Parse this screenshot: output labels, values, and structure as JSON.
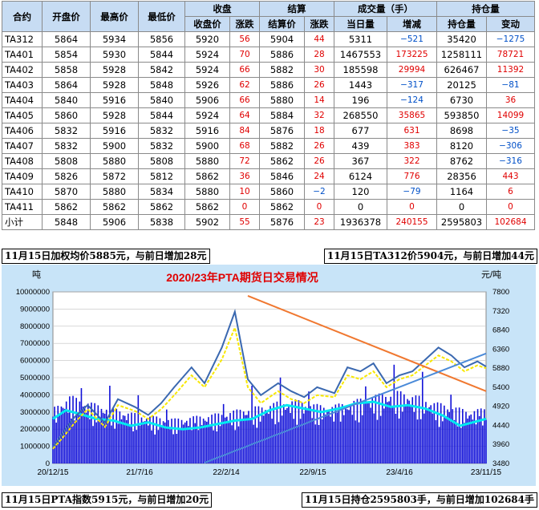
{
  "table": {
    "headers_top": [
      "合约",
      "开盘价",
      "最高价",
      "最低价",
      "收盘",
      "结算",
      "成交量（手）",
      "持仓量"
    ],
    "headers_sub": [
      "收盘价",
      "涨跌",
      "结算价",
      "涨跌",
      "当日量",
      "增减",
      "持仓量",
      "变动"
    ],
    "rows": [
      [
        "TA312",
        "5864",
        "5934",
        "5856",
        "5920",
        "56",
        "5904",
        "44",
        "5311",
        "−521",
        "35420",
        "−1275"
      ],
      [
        "TA401",
        "5854",
        "5930",
        "5844",
        "5924",
        "70",
        "5886",
        "28",
        "1467553",
        "173225",
        "1258111",
        "78721"
      ],
      [
        "TA402",
        "5858",
        "5928",
        "5842",
        "5924",
        "66",
        "5882",
        "30",
        "185598",
        "29994",
        "626467",
        "11392"
      ],
      [
        "TA403",
        "5864",
        "5928",
        "5848",
        "5926",
        "62",
        "5886",
        "26",
        "1443",
        "−317",
        "20125",
        "−81"
      ],
      [
        "TA404",
        "5840",
        "5916",
        "5840",
        "5906",
        "66",
        "5880",
        "14",
        "196",
        "−124",
        "6730",
        "36"
      ],
      [
        "TA405",
        "5860",
        "5928",
        "5844",
        "5924",
        "64",
        "5884",
        "32",
        "268550",
        "35865",
        "593850",
        "14099"
      ],
      [
        "TA406",
        "5832",
        "5916",
        "5832",
        "5916",
        "84",
        "5876",
        "18",
        "677",
        "631",
        "8698",
        "−35"
      ],
      [
        "TA407",
        "5832",
        "5900",
        "5832",
        "5900",
        "68",
        "5882",
        "26",
        "439",
        "383",
        "8120",
        "−306"
      ],
      [
        "TA408",
        "5808",
        "5880",
        "5808",
        "5880",
        "72",
        "5862",
        "26",
        "367",
        "322",
        "8762",
        "−316"
      ],
      [
        "TA409",
        "5826",
        "5872",
        "5812",
        "5862",
        "36",
        "5846",
        "24",
        "6124",
        "776",
        "28356",
        "443"
      ],
      [
        "TA410",
        "5870",
        "5880",
        "5834",
        "5880",
        "10",
        "5860",
        "−2",
        "120",
        "−79",
        "1164",
        "6"
      ],
      [
        "TA411",
        "5862",
        "5862",
        "5862",
        "5862",
        "0",
        "5862",
        "0",
        "0",
        "0",
        "0",
        "0"
      ],
      [
        "小计",
        "5848",
        "5906",
        "5838",
        "5902",
        "55",
        "5876",
        "23",
        "1936378",
        "240155",
        "2595803",
        "102684"
      ]
    ]
  },
  "notes": {
    "weighted_avg": "11月15日加权均价5885元，与前日增加28元",
    "ta312_price": "11月15日TA312价5904元，与前日增加44元",
    "pta_index": "11月15日PTA指数5915元，与前日增加20元",
    "open_interest": "11月15日持仓2595803手，与前日增加102684手"
  },
  "colors": {
    "red": "#e00000",
    "blue": "#0050c8",
    "header_bg": "#c7dcf3",
    "plot_bg": "#ffffff",
    "chart_bg": "#c8e4f8",
    "bars": "#1010d8",
    "oi_line": "#00e8f0",
    "price_line": "#3a68b0",
    "settle_line": "#f8e800",
    "trend_orange": "#f07830",
    "trend_blue": "#4a8ad8"
  },
  "chart_data": {
    "type": "bar",
    "title": "2020/23年PTA期货日交易情况",
    "ylabel_left": "吨",
    "ylabel_right": "元/吨",
    "left_ticks": [
      "10000000",
      "9000000",
      "8000000",
      "7000000",
      "6000000",
      "5000000",
      "4000000",
      "3000000",
      "2000000",
      "1000000",
      "0"
    ],
    "right_ticks": [
      "7800",
      "7320",
      "6840",
      "6360",
      "5880",
      "5400",
      "4920",
      "4440",
      "3960",
      "3480"
    ],
    "x_ticks": [
      "20/12/15",
      "21/7/16",
      "22/2/14",
      "22/9/15",
      "23/4/16",
      "23/11/15"
    ],
    "ylim_left": [
      0,
      10000000
    ],
    "ylim_right": [
      3480,
      7800
    ],
    "x_range": [
      0,
      1
    ],
    "series": [
      {
        "kind": "bars",
        "x": [
          0,
          0.04,
          0.08,
          0.12,
          0.16,
          0.2,
          0.24,
          0.28,
          0.32,
          0.36,
          0.4,
          0.44,
          0.48,
          0.52,
          0.56,
          0.6,
          0.64,
          0.68,
          0.72,
          0.76,
          0.8,
          0.84,
          0.88,
          0.92,
          0.96,
          1.0
        ],
        "values": [
          2600000,
          3200000,
          2900000,
          2700000,
          2500000,
          2300000,
          2200000,
          2100000,
          2200000,
          2300000,
          2400000,
          2600000,
          2700000,
          2900000,
          3000000,
          2800000,
          2700000,
          2900000,
          3100000,
          3300000,
          3400000,
          3200000,
          2900000,
          2700000,
          2500000,
          2600000
        ]
      },
      {
        "kind": "line",
        "x": [
          0,
          0.03,
          0.06,
          0.1,
          0.14,
          0.18,
          0.22,
          0.26,
          0.3,
          0.34,
          0.38,
          0.42,
          0.46,
          0.5,
          0.54,
          0.58,
          0.62,
          0.66,
          0.7,
          0.74,
          0.78,
          0.82,
          0.86,
          0.9,
          0.94,
          0.97,
          1.0
        ],
        "values": [
          2600000,
          3100000,
          2900000,
          2600000,
          2500000,
          2200000,
          2400000,
          2100000,
          2000000,
          2100000,
          2300000,
          2500000,
          2600000,
          3100000,
          3400000,
          3200000,
          3000000,
          3200000,
          3500000,
          3600000,
          3300000,
          3400000,
          3200000,
          2800000,
          2200000,
          2400000,
          2600000
        ]
      }
    ],
    "price": {
      "x": [
        0,
        0.02,
        0.05,
        0.08,
        0.12,
        0.15,
        0.19,
        0.22,
        0.25,
        0.28,
        0.32,
        0.35,
        0.39,
        0.42,
        0.45,
        0.48,
        0.52,
        0.55,
        0.58,
        0.61,
        0.65,
        0.68,
        0.71,
        0.74,
        0.77,
        0.8,
        0.83,
        0.86,
        0.89,
        0.92,
        0.95,
        0.98,
        1.0
      ],
      "values": [
        3900,
        4200,
        4650,
        4950,
        4500,
        5100,
        4900,
        4700,
        5000,
        5400,
        5900,
        5500,
        6400,
        7300,
        5600,
        5200,
        5500,
        5300,
        5150,
        5400,
        5250,
        5900,
        5800,
        6000,
        5500,
        5700,
        5800,
        6100,
        6400,
        6200,
        5900,
        6050,
        5920
      ]
    },
    "settle": {
      "x": [
        0,
        0.02,
        0.05,
        0.08,
        0.12,
        0.15,
        0.19,
        0.22,
        0.25,
        0.28,
        0.32,
        0.35,
        0.39,
        0.42,
        0.45,
        0.48,
        0.52,
        0.55,
        0.58,
        0.61,
        0.65,
        0.68,
        0.71,
        0.74,
        0.77,
        0.8,
        0.83,
        0.86,
        0.89,
        0.92,
        0.95,
        0.98,
        1.0
      ],
      "values": [
        3850,
        4100,
        4500,
        4850,
        4400,
        4950,
        4800,
        4600,
        4850,
        5200,
        5700,
        5400,
        6100,
        6900,
        5400,
        5000,
        5300,
        5100,
        5000,
        5200,
        5150,
        5700,
        5600,
        5800,
        5400,
        5600,
        5700,
        5950,
        6200,
        6050,
        5800,
        5950,
        5880
      ]
    },
    "trend_lines": [
      {
        "from": [
          0.45,
          7700
        ],
        "to": [
          1.0,
          5300
        ]
      },
      {
        "from": [
          0.35,
          3500
        ],
        "to": [
          1.0,
          6250
        ]
      }
    ]
  }
}
